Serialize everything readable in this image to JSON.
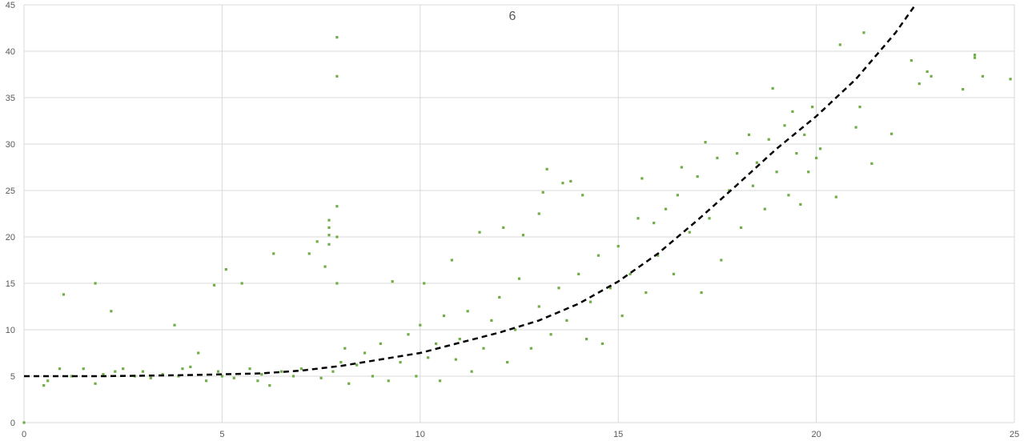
{
  "chart_data": {
    "type": "scatter",
    "title": "6",
    "xlabel": "",
    "ylabel": "",
    "xlim": [
      0,
      25
    ],
    "ylim": [
      0,
      45
    ],
    "x_ticks": [
      0,
      5,
      10,
      15,
      20,
      25
    ],
    "y_ticks": [
      0,
      5,
      10,
      15,
      20,
      25,
      30,
      35,
      40,
      45
    ],
    "grid": true,
    "legend": "none",
    "series": [
      {
        "marker_color": "#70ad47",
        "points": [
          [
            0,
            0
          ],
          [
            0.5,
            4.0
          ],
          [
            0.6,
            4.5
          ],
          [
            0.9,
            5.8
          ],
          [
            1.0,
            13.8
          ],
          [
            1.2,
            5.0
          ],
          [
            1.5,
            5.8
          ],
          [
            1.8,
            15.0
          ],
          [
            1.8,
            4.2
          ],
          [
            2.0,
            5.2
          ],
          [
            2.2,
            12.0
          ],
          [
            2.3,
            5.5
          ],
          [
            2.5,
            5.8
          ],
          [
            2.8,
            5.0
          ],
          [
            3.0,
            5.5
          ],
          [
            3.2,
            4.8
          ],
          [
            3.5,
            5.2
          ],
          [
            3.8,
            10.5
          ],
          [
            3.9,
            5.0
          ],
          [
            4.0,
            5.8
          ],
          [
            4.2,
            6.0
          ],
          [
            4.4,
            7.5
          ],
          [
            4.6,
            4.5
          ],
          [
            4.8,
            14.8
          ],
          [
            4.9,
            5.5
          ],
          [
            5.0,
            5.0
          ],
          [
            5.1,
            16.5
          ],
          [
            5.3,
            4.8
          ],
          [
            5.5,
            15.0
          ],
          [
            5.7,
            5.8
          ],
          [
            5.9,
            4.5
          ],
          [
            6.0,
            5.2
          ],
          [
            6.2,
            4.0
          ],
          [
            6.3,
            18.2
          ],
          [
            6.5,
            5.5
          ],
          [
            6.8,
            5.0
          ],
          [
            7.0,
            5.8
          ],
          [
            7.2,
            18.2
          ],
          [
            7.4,
            19.5
          ],
          [
            7.5,
            4.8
          ],
          [
            7.6,
            16.8
          ],
          [
            7.7,
            19.2
          ],
          [
            7.7,
            20.2
          ],
          [
            7.7,
            21.0
          ],
          [
            7.7,
            21.8
          ],
          [
            7.8,
            5.5
          ],
          [
            7.9,
            41.5
          ],
          [
            7.9,
            37.3
          ],
          [
            7.9,
            23.3
          ],
          [
            7.9,
            20.0
          ],
          [
            7.9,
            15.0
          ],
          [
            8.0,
            6.5
          ],
          [
            8.1,
            8.0
          ],
          [
            8.2,
            4.2
          ],
          [
            8.4,
            6.2
          ],
          [
            8.6,
            7.5
          ],
          [
            8.8,
            5.0
          ],
          [
            9.0,
            8.5
          ],
          [
            9.2,
            4.5
          ],
          [
            9.3,
            15.2
          ],
          [
            9.5,
            6.5
          ],
          [
            9.7,
            9.5
          ],
          [
            9.9,
            5.0
          ],
          [
            10.0,
            10.5
          ],
          [
            10.1,
            15.0
          ],
          [
            10.2,
            7.0
          ],
          [
            10.4,
            8.5
          ],
          [
            10.5,
            4.5
          ],
          [
            10.6,
            11.5
          ],
          [
            10.8,
            17.5
          ],
          [
            10.9,
            6.8
          ],
          [
            11.0,
            9.0
          ],
          [
            11.2,
            12.0
          ],
          [
            11.3,
            5.5
          ],
          [
            11.5,
            20.5
          ],
          [
            11.6,
            8.0
          ],
          [
            11.8,
            11.0
          ],
          [
            12.0,
            13.5
          ],
          [
            12.1,
            21.0
          ],
          [
            12.2,
            6.5
          ],
          [
            12.4,
            10.0
          ],
          [
            12.5,
            15.5
          ],
          [
            12.6,
            20.2
          ],
          [
            12.8,
            8.0
          ],
          [
            13.0,
            12.5
          ],
          [
            13.0,
            22.5
          ],
          [
            13.1,
            24.8
          ],
          [
            13.2,
            27.3
          ],
          [
            13.3,
            9.5
          ],
          [
            13.5,
            14.5
          ],
          [
            13.6,
            25.8
          ],
          [
            13.7,
            11.0
          ],
          [
            13.8,
            26.0
          ],
          [
            14.0,
            16.0
          ],
          [
            14.1,
            24.5
          ],
          [
            14.2,
            9.0
          ],
          [
            14.3,
            13.0
          ],
          [
            14.5,
            18.0
          ],
          [
            14.6,
            8.5
          ],
          [
            14.8,
            14.5
          ],
          [
            15.0,
            19.0
          ],
          [
            15.1,
            11.5
          ],
          [
            15.3,
            16.0
          ],
          [
            15.5,
            22.0
          ],
          [
            15.6,
            26.3
          ],
          [
            15.7,
            14.0
          ],
          [
            15.9,
            21.5
          ],
          [
            16.0,
            18.0
          ],
          [
            16.2,
            23.0
          ],
          [
            16.4,
            16.0
          ],
          [
            16.5,
            24.5
          ],
          [
            16.6,
            27.5
          ],
          [
            16.8,
            20.5
          ],
          [
            17.0,
            26.5
          ],
          [
            17.1,
            14.0
          ],
          [
            17.2,
            30.2
          ],
          [
            17.3,
            22.0
          ],
          [
            17.5,
            28.5
          ],
          [
            17.6,
            17.5
          ],
          [
            17.8,
            25.0
          ],
          [
            18.0,
            29.0
          ],
          [
            18.1,
            21.0
          ],
          [
            18.3,
            31.0
          ],
          [
            18.4,
            25.5
          ],
          [
            18.5,
            28.0
          ],
          [
            18.7,
            23.0
          ],
          [
            18.8,
            30.5
          ],
          [
            18.9,
            36.0
          ],
          [
            19.0,
            27.0
          ],
          [
            19.2,
            32.0
          ],
          [
            19.3,
            24.5
          ],
          [
            19.4,
            33.5
          ],
          [
            19.5,
            29.0
          ],
          [
            19.6,
            23.5
          ],
          [
            19.7,
            31.0
          ],
          [
            19.8,
            27.0
          ],
          [
            19.9,
            34.0
          ],
          [
            20.0,
            28.5
          ],
          [
            20.1,
            29.5
          ],
          [
            20.5,
            24.3
          ],
          [
            20.6,
            40.7
          ],
          [
            21.0,
            31.8
          ],
          [
            21.1,
            34.0
          ],
          [
            21.2,
            42.0
          ],
          [
            21.4,
            27.9
          ],
          [
            21.9,
            31.1
          ],
          [
            22.4,
            39.0
          ],
          [
            22.6,
            36.5
          ],
          [
            22.8,
            37.8
          ],
          [
            22.9,
            37.3
          ],
          [
            23.7,
            35.9
          ],
          [
            24.0,
            39.3
          ],
          [
            24.0,
            39.6
          ],
          [
            24.2,
            37.3
          ],
          [
            24.9,
            37.0
          ]
        ]
      }
    ],
    "trendline": {
      "style": "dashed",
      "color": "#000000",
      "points": [
        [
          0,
          5.0
        ],
        [
          2,
          5.0
        ],
        [
          4,
          5.1
        ],
        [
          6,
          5.3
        ],
        [
          7,
          5.6
        ],
        [
          8,
          6.1
        ],
        [
          9,
          6.8
        ],
        [
          10,
          7.5
        ],
        [
          11,
          8.6
        ],
        [
          12,
          9.7
        ],
        [
          13,
          11.0
        ],
        [
          14,
          12.8
        ],
        [
          15,
          15.2
        ],
        [
          16,
          18.2
        ],
        [
          17,
          21.8
        ],
        [
          18,
          25.6
        ],
        [
          19,
          29.5
        ],
        [
          20,
          33.0
        ],
        [
          21,
          37.0
        ],
        [
          22,
          42.0
        ],
        [
          22.5,
          45.0
        ]
      ]
    }
  }
}
